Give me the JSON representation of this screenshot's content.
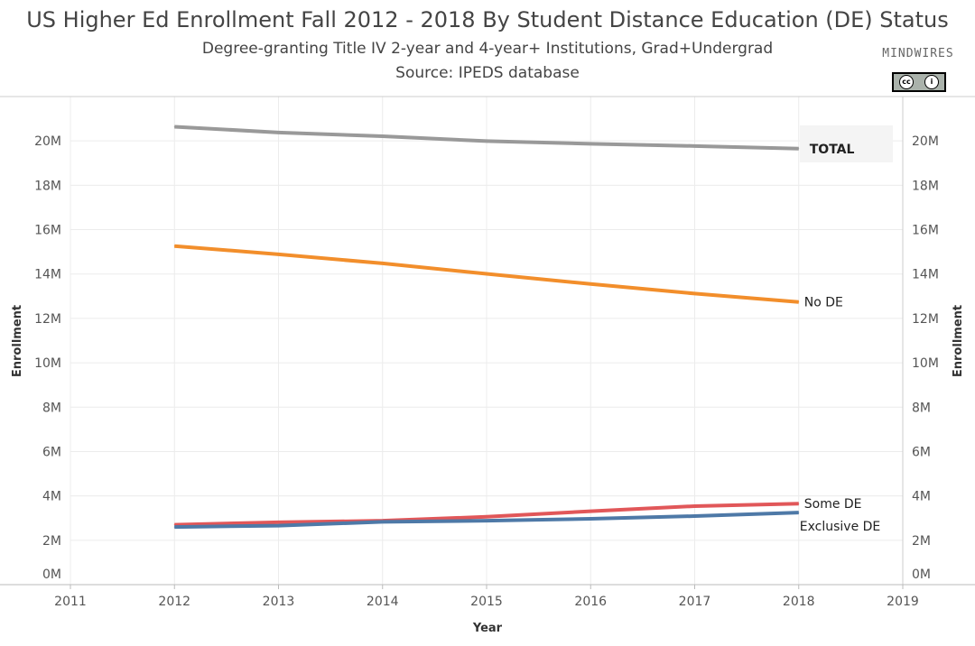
{
  "header": {
    "title": "US Higher Ed Enrollment Fall 2012 - 2018 By Student Distance Education (DE) Status",
    "subtitle": "Degree-granting Title IV 2-year and 4-year+ Institutions, Grad+Undergrad",
    "source": "Source: IPEDS database"
  },
  "logo": {
    "brand": "MINDWIRES",
    "license": "CC BY"
  },
  "chart_data": {
    "type": "line",
    "title": "US Higher Ed Enrollment Fall 2012 - 2018 By Student Distance Education (DE) Status",
    "xlabel": "Year",
    "ylabel": "Enrollment",
    "x_ticks": [
      2011,
      2012,
      2013,
      2014,
      2015,
      2016,
      2017,
      2018,
      2019
    ],
    "xlim": [
      2011,
      2019
    ],
    "ylim": [
      0,
      22000000
    ],
    "y_ticks": [
      0,
      2000000,
      4000000,
      6000000,
      8000000,
      10000000,
      12000000,
      14000000,
      16000000,
      18000000,
      20000000
    ],
    "y_tick_labels": [
      "0M",
      "2M",
      "4M",
      "6M",
      "8M",
      "10M",
      "12M",
      "14M",
      "16M",
      "18M",
      "20M"
    ],
    "x": [
      2012,
      2013,
      2014,
      2015,
      2016,
      2017,
      2018
    ],
    "series": [
      {
        "name": "TOTAL",
        "color": "#999999",
        "values": [
          20640000,
          20380000,
          20210000,
          19990000,
          19870000,
          19770000,
          19650000
        ]
      },
      {
        "name": "No DE",
        "color": "#f28e2b",
        "values": [
          15260000,
          14890000,
          14480000,
          14010000,
          13550000,
          13120000,
          12740000
        ]
      },
      {
        "name": "Some DE",
        "color": "#e15759",
        "values": [
          2700000,
          2810000,
          2880000,
          3060000,
          3310000,
          3540000,
          3650000
        ]
      },
      {
        "name": "Exclusive DE",
        "color": "#4e79a7",
        "values": [
          2600000,
          2660000,
          2830000,
          2880000,
          2970000,
          3090000,
          3250000
        ]
      }
    ]
  }
}
